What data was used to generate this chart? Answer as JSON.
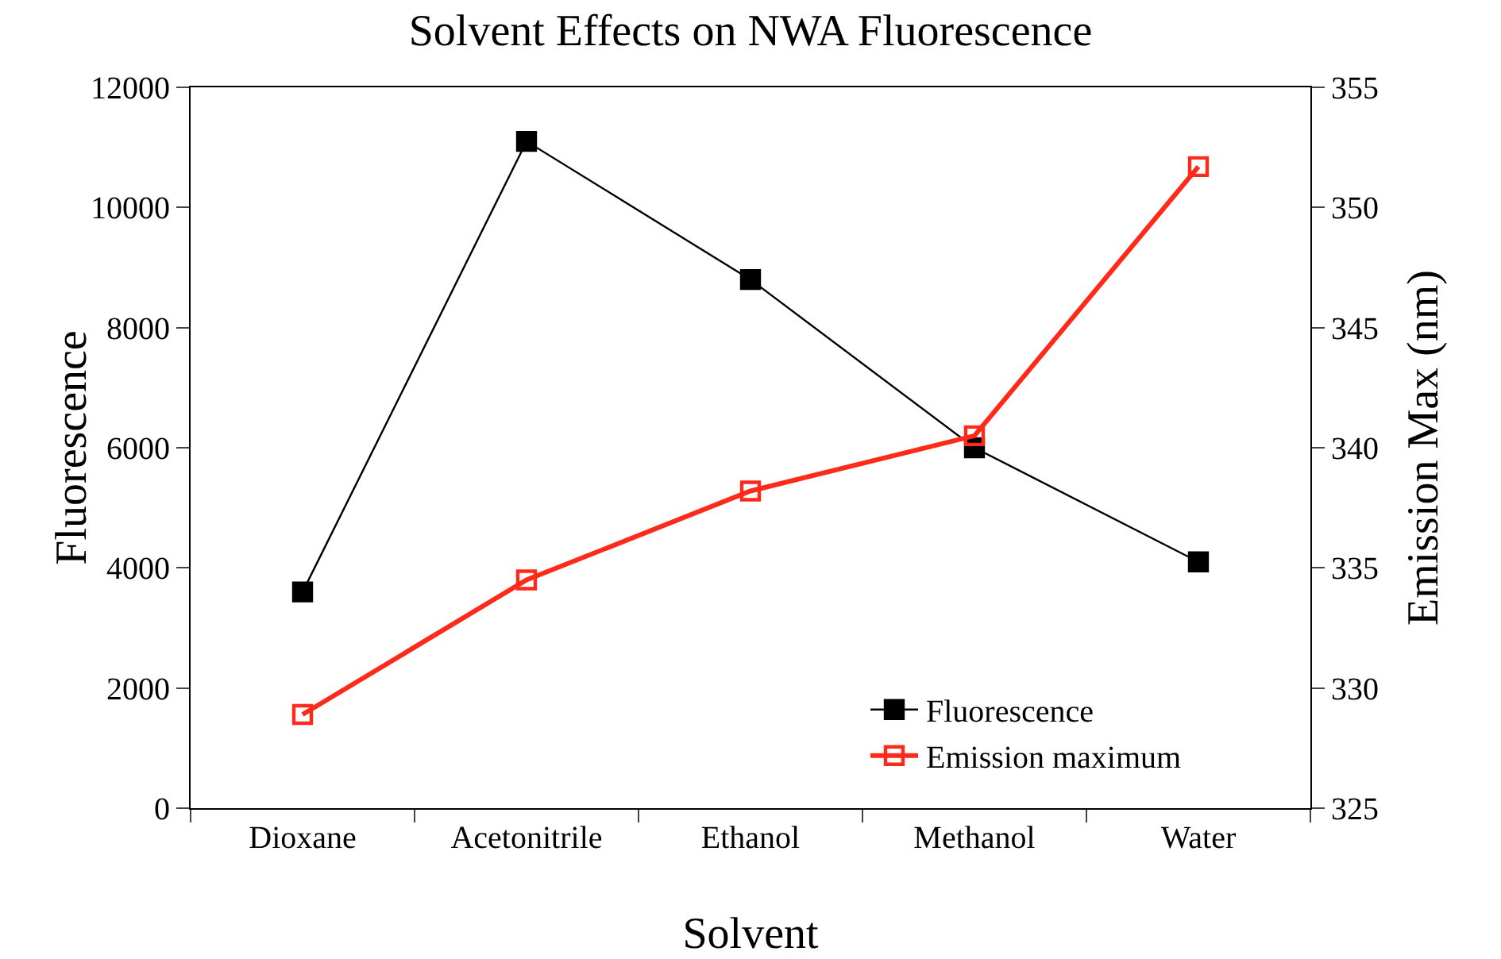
{
  "chart_data": {
    "type": "line",
    "title": "Solvent Effects on NWA Fluorescence",
    "xlabel": "Solvent",
    "ylabel": "Fluorescence",
    "y2label": "Emission Max (nm)",
    "categories": [
      "Dioxane",
      "Acetonitrile",
      "Ethanol",
      "Methanol",
      "Water"
    ],
    "series": [
      {
        "name": "Fluorescence",
        "color": "#000000",
        "values": [
          3600,
          11100,
          8800,
          6000,
          4100
        ],
        "marker": "square"
      },
      {
        "name": "Emission maximum",
        "color": "#ff2a1a",
        "values": [
          328.9,
          334.5,
          338.2,
          340.5,
          351.7
        ],
        "axis": "y2",
        "marker": "square-open"
      }
    ],
    "ylim": [
      0,
      12000
    ],
    "yticks": [
      0,
      2000,
      4000,
      6000,
      8000,
      10000,
      12000
    ],
    "y2lim": [
      325,
      355
    ],
    "y2ticks": [
      325,
      330,
      335,
      340,
      345,
      350,
      355
    ],
    "grid": false,
    "legend": "bottom right"
  }
}
